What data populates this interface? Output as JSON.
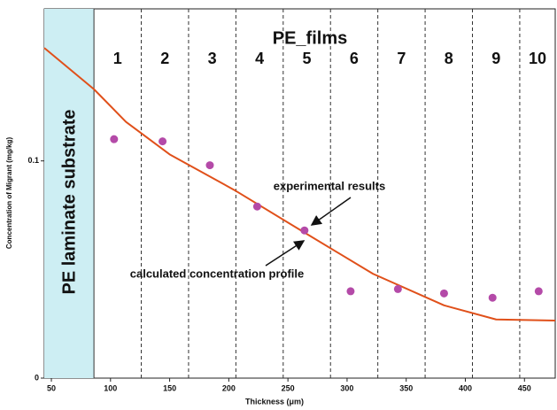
{
  "chart_data": {
    "type": "scatter",
    "title": "PE_films",
    "substrate_label": "PE laminate substrate",
    "x_label": "Thickness (μm)",
    "y_label": "Concentration of Migrant (mg/kg)",
    "xlim": [
      44,
      476
    ],
    "ylim": [
      0,
      0.17
    ],
    "xticks": [
      50,
      100,
      150,
      200,
      250,
      300,
      350,
      400,
      450
    ],
    "yticks": [
      0,
      0.1
    ],
    "boundaries": [
      86,
      126,
      166,
      206,
      246,
      286,
      326,
      366,
      406,
      446
    ],
    "films": [
      "1",
      "2",
      "3",
      "4",
      "5",
      "6",
      "7",
      "8",
      "9",
      "10"
    ],
    "series": [
      {
        "name": "experimental results",
        "color": "#b44aa8",
        "x": [
          103,
          144,
          184,
          224,
          264,
          303,
          343,
          382,
          423,
          462
        ],
        "values": [
          0.11,
          0.109,
          0.098,
          0.079,
          0.068,
          0.04,
          0.041,
          0.039,
          0.037,
          0.04
        ]
      },
      {
        "name": "calculated concentration profile",
        "color": "#e0501a",
        "x": [
          44,
          86,
          113,
          150,
          205,
          264,
          322,
          382,
          426,
          476
        ],
        "values": [
          0.152,
          0.133,
          0.118,
          0.103,
          0.0865,
          0.067,
          0.048,
          0.0335,
          0.027,
          0.0265
        ]
      }
    ]
  }
}
